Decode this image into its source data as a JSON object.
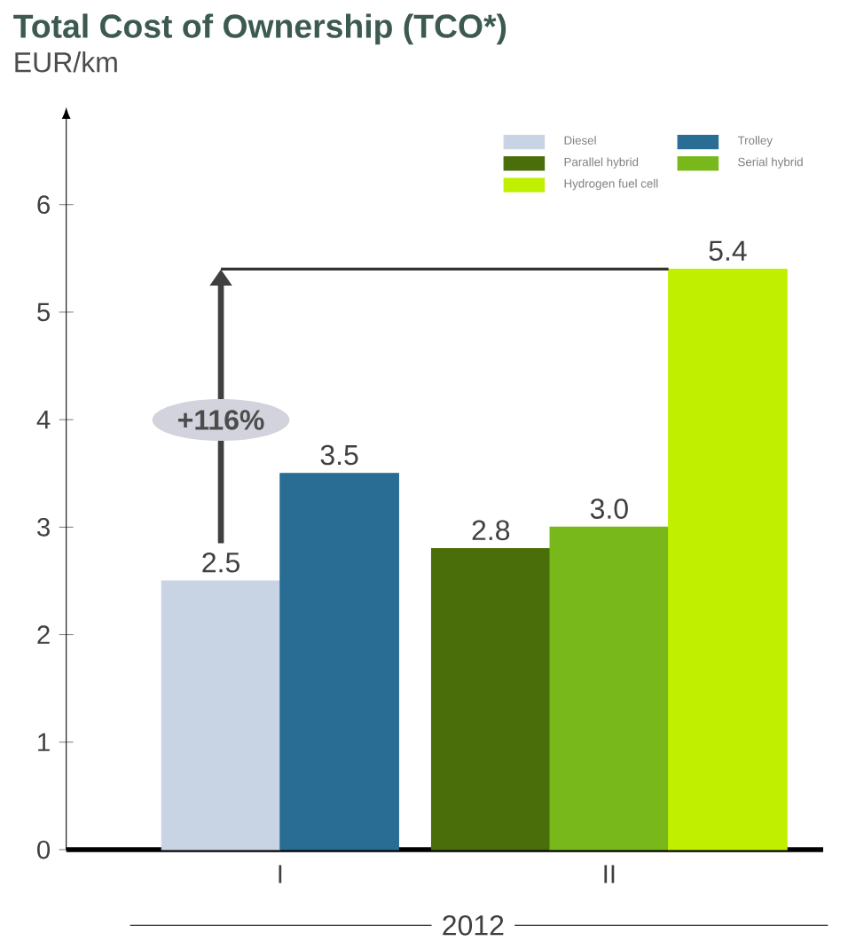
{
  "chart_data": {
    "type": "bar",
    "title": "Total Cost of Ownership (TCO*)",
    "ylabel": "EUR/km",
    "xlabel": "2012",
    "categories": [
      "I",
      "II"
    ],
    "series": [
      {
        "name": "Diesel",
        "color": "#c8d4e4",
        "values": [
          2.5,
          null
        ],
        "value_labels": [
          "2.5",
          null
        ]
      },
      {
        "name": "Trolley",
        "color": "#2a6d94",
        "values": [
          3.5,
          null
        ],
        "value_labels": [
          "3.5",
          null
        ]
      },
      {
        "name": "Parallel hybrid",
        "color": "#4a6e0a",
        "values": [
          null,
          2.8
        ],
        "value_labels": [
          null,
          "2.8"
        ]
      },
      {
        "name": "Serial hybrid",
        "color": "#78b81a",
        "values": [
          null,
          3.0
        ],
        "value_labels": [
          null,
          "3.0"
        ]
      },
      {
        "name": "Hydrogen fuel cell",
        "color": "#c0f000",
        "values": [
          null,
          5.4
        ],
        "value_labels": [
          null,
          "5.4"
        ]
      }
    ],
    "ylim": [
      0,
      6.6
    ],
    "yticks": [
      0,
      1,
      2,
      3,
      4,
      5,
      6
    ],
    "legend": "top right",
    "ref_lines": [
      {
        "axis": "y",
        "value": 5.4
      }
    ],
    "annotations": [
      "+116%"
    ]
  }
}
